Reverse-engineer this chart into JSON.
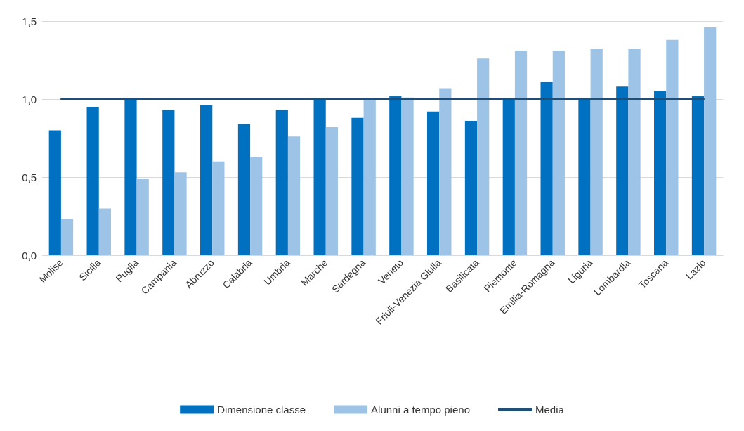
{
  "chart_data": {
    "type": "bar",
    "categories": [
      "Molise",
      "Sicilia",
      "Puglia",
      "Campania",
      "Abruzzo",
      "Calabria",
      "Umbria",
      "Marche",
      "Sardegna",
      "Veneto",
      "Friuli-Venezia Giulia",
      "Basilicata",
      "Piemonte",
      "Emilia-Romagna",
      "Liguria",
      "Lombardia",
      "Toscana",
      "Lazio"
    ],
    "series": [
      {
        "name": "Dimensione classe",
        "color": "#0070c0",
        "values": [
          0.8,
          0.95,
          1.0,
          0.93,
          0.96,
          0.84,
          0.93,
          1.0,
          0.88,
          1.02,
          0.92,
          0.86,
          1.0,
          1.11,
          1.0,
          1.08,
          1.05,
          1.02
        ]
      },
      {
        "name": "Alunni a tempo pieno",
        "color": "#9dc3e6",
        "values": [
          0.23,
          0.3,
          0.49,
          0.53,
          0.6,
          0.63,
          0.76,
          0.82,
          1.0,
          1.01,
          1.07,
          1.26,
          1.31,
          1.31,
          1.32,
          1.32,
          1.38,
          1.46
        ]
      },
      {
        "name": "Media",
        "type": "line",
        "color": "#1f4e79",
        "values": [
          1,
          1,
          1,
          1,
          1,
          1,
          1,
          1,
          1,
          1,
          1,
          1,
          1,
          1,
          1,
          1,
          1,
          1
        ]
      }
    ],
    "ylim": [
      0,
      1.5
    ],
    "yticks": [
      {
        "value": 0,
        "label": "0,0"
      },
      {
        "value": 0.5,
        "label": "0,5"
      },
      {
        "value": 1,
        "label": "1,0"
      },
      {
        "value": 1.5,
        "label": "1,5"
      }
    ],
    "grid": "y",
    "legend": "bottom",
    "marker": "none",
    "line_style": "solid"
  }
}
